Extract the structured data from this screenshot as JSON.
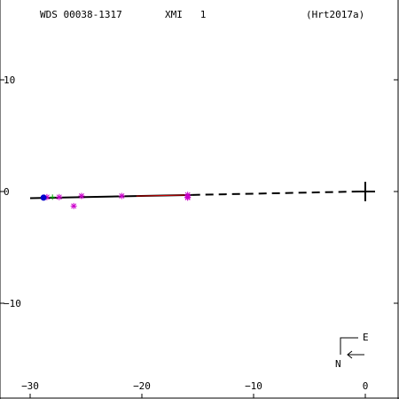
{
  "header": {
    "wds_label": "WDS 00038-1317",
    "discoverer": "XMI   1",
    "reference": "(Hrt2017a)"
  },
  "compass": {
    "east_label": "E",
    "north_label": "N",
    "arrow_icon": "left-arrow-icon"
  },
  "chart_data": {
    "type": "scatter",
    "title": "",
    "xlabel": "",
    "ylabel": "",
    "xlim": [
      -31,
      0.5
    ],
    "ylim": [
      -14.5,
      14.5
    ],
    "x_ticks": [
      -30,
      -20,
      -10,
      0
    ],
    "x_tick_labels": [
      "−30",
      "−20",
      "−10",
      "0"
    ],
    "y_ticks": [
      10,
      0,
      -10
    ],
    "y_tick_labels": [
      "10",
      "0",
      "−10"
    ],
    "grid": false,
    "legend": "none",
    "colors": {
      "axes": "#000000",
      "observation": "#cc00cc",
      "residual": "#cc0000",
      "latest_observation": "#0000cc",
      "other_observation": "#00aa00"
    },
    "primary_position": {
      "x": 0,
      "y": 0,
      "marker": "plus"
    },
    "linear_fit": [
      {
        "x": -30,
        "y": -0.6
      },
      {
        "x": -0.5,
        "y": 0
      }
    ],
    "series": [
      {
        "marker": "asterisk",
        "points": [
          {
            "x": -28.5,
            "y": -0.5
          },
          {
            "x": -27.4,
            "y": -0.5
          },
          {
            "x": -26.1,
            "y": -1.3
          },
          {
            "x": -25.4,
            "y": -0.4
          },
          {
            "x": -21.8,
            "y": -0.4
          },
          {
            "x": -15.9,
            "y": -0.3
          },
          {
            "x": -15.9,
            "y": -0.5
          },
          {
            "x": -15.9,
            "y": -0.55
          }
        ]
      },
      {
        "marker": "circle",
        "points": [
          {
            "x": -28.8,
            "y": -0.55
          }
        ]
      },
      {
        "marker": "plus",
        "points": [
          {
            "x": -28.0,
            "y": -0.5
          }
        ]
      }
    ]
  }
}
